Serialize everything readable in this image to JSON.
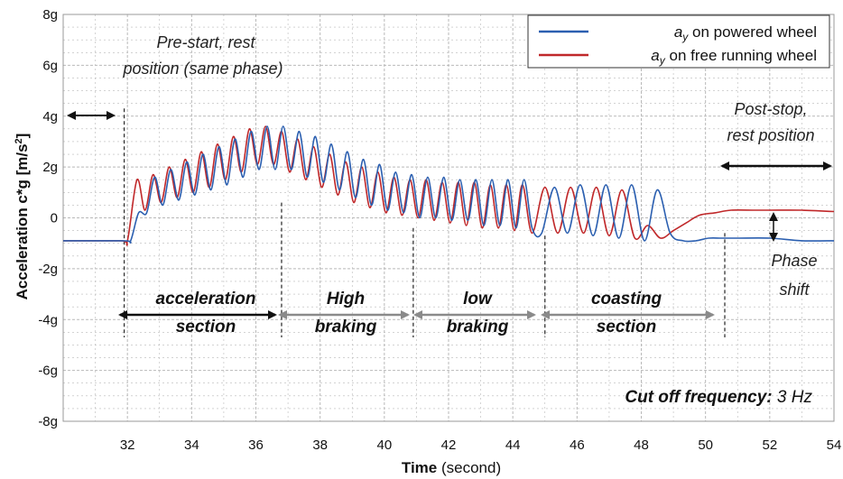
{
  "chart_data": {
    "type": "line",
    "title": "",
    "xlabel_bold": "Time",
    "xlabel_rest": " (second)",
    "ylabel": "Acceleration c*g [m/s",
    "ylabel_sup": "2",
    "ylabel_end": "]",
    "xlim": [
      30,
      54
    ],
    "ylim": [
      -8,
      8
    ],
    "xticks": [
      32,
      34,
      36,
      38,
      40,
      42,
      44,
      46,
      48,
      50,
      52,
      54
    ],
    "yticks": [
      {
        "value": 8,
        "label": "8g"
      },
      {
        "value": 6,
        "label": "6g"
      },
      {
        "value": 4,
        "label": "4g"
      },
      {
        "value": 2,
        "label": "2g"
      },
      {
        "value": 0,
        "label": "0"
      },
      {
        "value": -2,
        "label": "-2g"
      },
      {
        "value": -4,
        "label": "-4g"
      },
      {
        "value": -6,
        "label": "-6g"
      },
      {
        "value": -8,
        "label": "-8g"
      }
    ],
    "grid": true,
    "legend_position": "top-right",
    "series": [
      {
        "name_sym": "a",
        "name_sub": "y",
        "name_rest": " on powered wheel",
        "color": "#2b5fb0",
        "x": [
          30.0,
          31.9,
          32.1,
          32.35,
          32.6,
          32.85,
          33.1,
          33.35,
          33.6,
          33.85,
          34.1,
          34.35,
          34.6,
          34.85,
          35.1,
          35.35,
          35.6,
          35.85,
          36.1,
          36.35,
          36.6,
          36.85,
          37.1,
          37.35,
          37.6,
          37.85,
          38.1,
          38.35,
          38.6,
          38.85,
          39.1,
          39.35,
          39.6,
          39.85,
          40.1,
          40.35,
          40.6,
          40.85,
          41.1,
          41.35,
          41.6,
          41.85,
          42.1,
          42.35,
          42.6,
          42.85,
          43.1,
          43.35,
          43.6,
          43.85,
          44.1,
          44.35,
          44.6,
          44.9,
          45.3,
          45.7,
          46.1,
          46.5,
          46.9,
          47.3,
          47.7,
          48.1,
          48.5,
          48.9,
          49.3,
          49.7,
          50.1,
          50.5,
          51,
          52,
          53,
          54
        ],
        "y": [
          -0.9,
          -0.9,
          -0.9,
          0.2,
          0.2,
          1.6,
          0.5,
          1.9,
          0.7,
          2.2,
          0.9,
          2.5,
          1.1,
          2.8,
          1.3,
          3.1,
          1.6,
          3.4,
          1.9,
          3.6,
          1.9,
          3.6,
          1.9,
          3.4,
          1.6,
          3.2,
          1.4,
          2.9,
          1.1,
          2.6,
          0.8,
          2.3,
          0.5,
          2.1,
          0.3,
          1.8,
          0.2,
          1.7,
          0.0,
          1.6,
          0.0,
          1.6,
          -0.1,
          1.5,
          -0.1,
          1.5,
          -0.3,
          1.5,
          -0.3,
          1.5,
          -0.4,
          1.5,
          -0.4,
          -0.6,
          1.2,
          -0.6,
          1.3,
          -0.7,
          1.3,
          -0.8,
          1.3,
          -0.9,
          1.1,
          -0.6,
          -0.9,
          -0.9,
          -0.8,
          -0.8,
          -0.8,
          -0.8,
          -0.9,
          -0.9
        ]
      },
      {
        "name_sym": "a",
        "name_sub": "y",
        "name_rest": " on free running wheel",
        "color": "#c0282a",
        "x": [
          30.0,
          31.8,
          32.0,
          32.3,
          32.55,
          32.8,
          33.05,
          33.3,
          33.55,
          33.8,
          34.05,
          34.3,
          34.55,
          34.8,
          35.05,
          35.3,
          35.55,
          35.8,
          36.05,
          36.3,
          36.55,
          36.8,
          37.05,
          37.3,
          37.55,
          37.8,
          38.05,
          38.3,
          38.55,
          38.8,
          39.05,
          39.3,
          39.55,
          39.8,
          40.05,
          40.3,
          40.55,
          40.8,
          41.05,
          41.3,
          41.55,
          41.8,
          42.05,
          42.3,
          42.55,
          42.8,
          43.05,
          43.3,
          43.55,
          43.8,
          44.05,
          44.3,
          44.6,
          45.0,
          45.4,
          45.8,
          46.2,
          46.6,
          47.0,
          47.4,
          47.8,
          48.2,
          48.6,
          49.0,
          49.4,
          49.8,
          50.3,
          50.8,
          51.5,
          52,
          53,
          54
        ],
        "y": [
          -0.9,
          -0.9,
          -0.9,
          1.5,
          0.3,
          1.7,
          0.6,
          2.0,
          0.8,
          2.3,
          1.0,
          2.6,
          1.2,
          2.9,
          1.5,
          3.2,
          1.8,
          3.5,
          2.1,
          3.6,
          2.1,
          3.4,
          1.8,
          3.1,
          1.5,
          2.8,
          1.2,
          2.5,
          0.9,
          2.2,
          0.6,
          2.0,
          0.4,
          1.8,
          0.2,
          1.6,
          0.1,
          1.5,
          0.0,
          1.5,
          -0.1,
          1.4,
          -0.2,
          1.4,
          -0.3,
          1.4,
          -0.4,
          1.3,
          -0.4,
          1.3,
          -0.5,
          1.3,
          -0.6,
          1.2,
          -0.6,
          1.2,
          -0.6,
          1.2,
          -0.7,
          1.1,
          -0.8,
          -0.3,
          -0.8,
          -0.5,
          -0.2,
          0.1,
          0.2,
          0.3,
          0.3,
          0.3,
          0.3,
          0.25
        ]
      }
    ],
    "annotations": {
      "prestart": [
        "Pre-start, rest",
        "position (same phase)"
      ],
      "poststop": [
        "Post-stop,",
        "rest position"
      ],
      "phase_shift": [
        "Phase",
        "shift"
      ],
      "acceleration": [
        "acceleration",
        "section"
      ],
      "high_braking": [
        "High",
        "braking"
      ],
      "low_braking": [
        "low",
        "braking"
      ],
      "coasting": [
        "coasting",
        "section"
      ],
      "cutoff_bold": "Cut off frequency:",
      "cutoff_value": " 3 Hz"
    },
    "markers_x": [
      31.9,
      36.8,
      40.9,
      45.0,
      50.6
    ],
    "colors": {
      "arrow_dark": "#111111",
      "arrow_gray": "#8a8a8a",
      "grid": "#b9b9b9"
    }
  }
}
